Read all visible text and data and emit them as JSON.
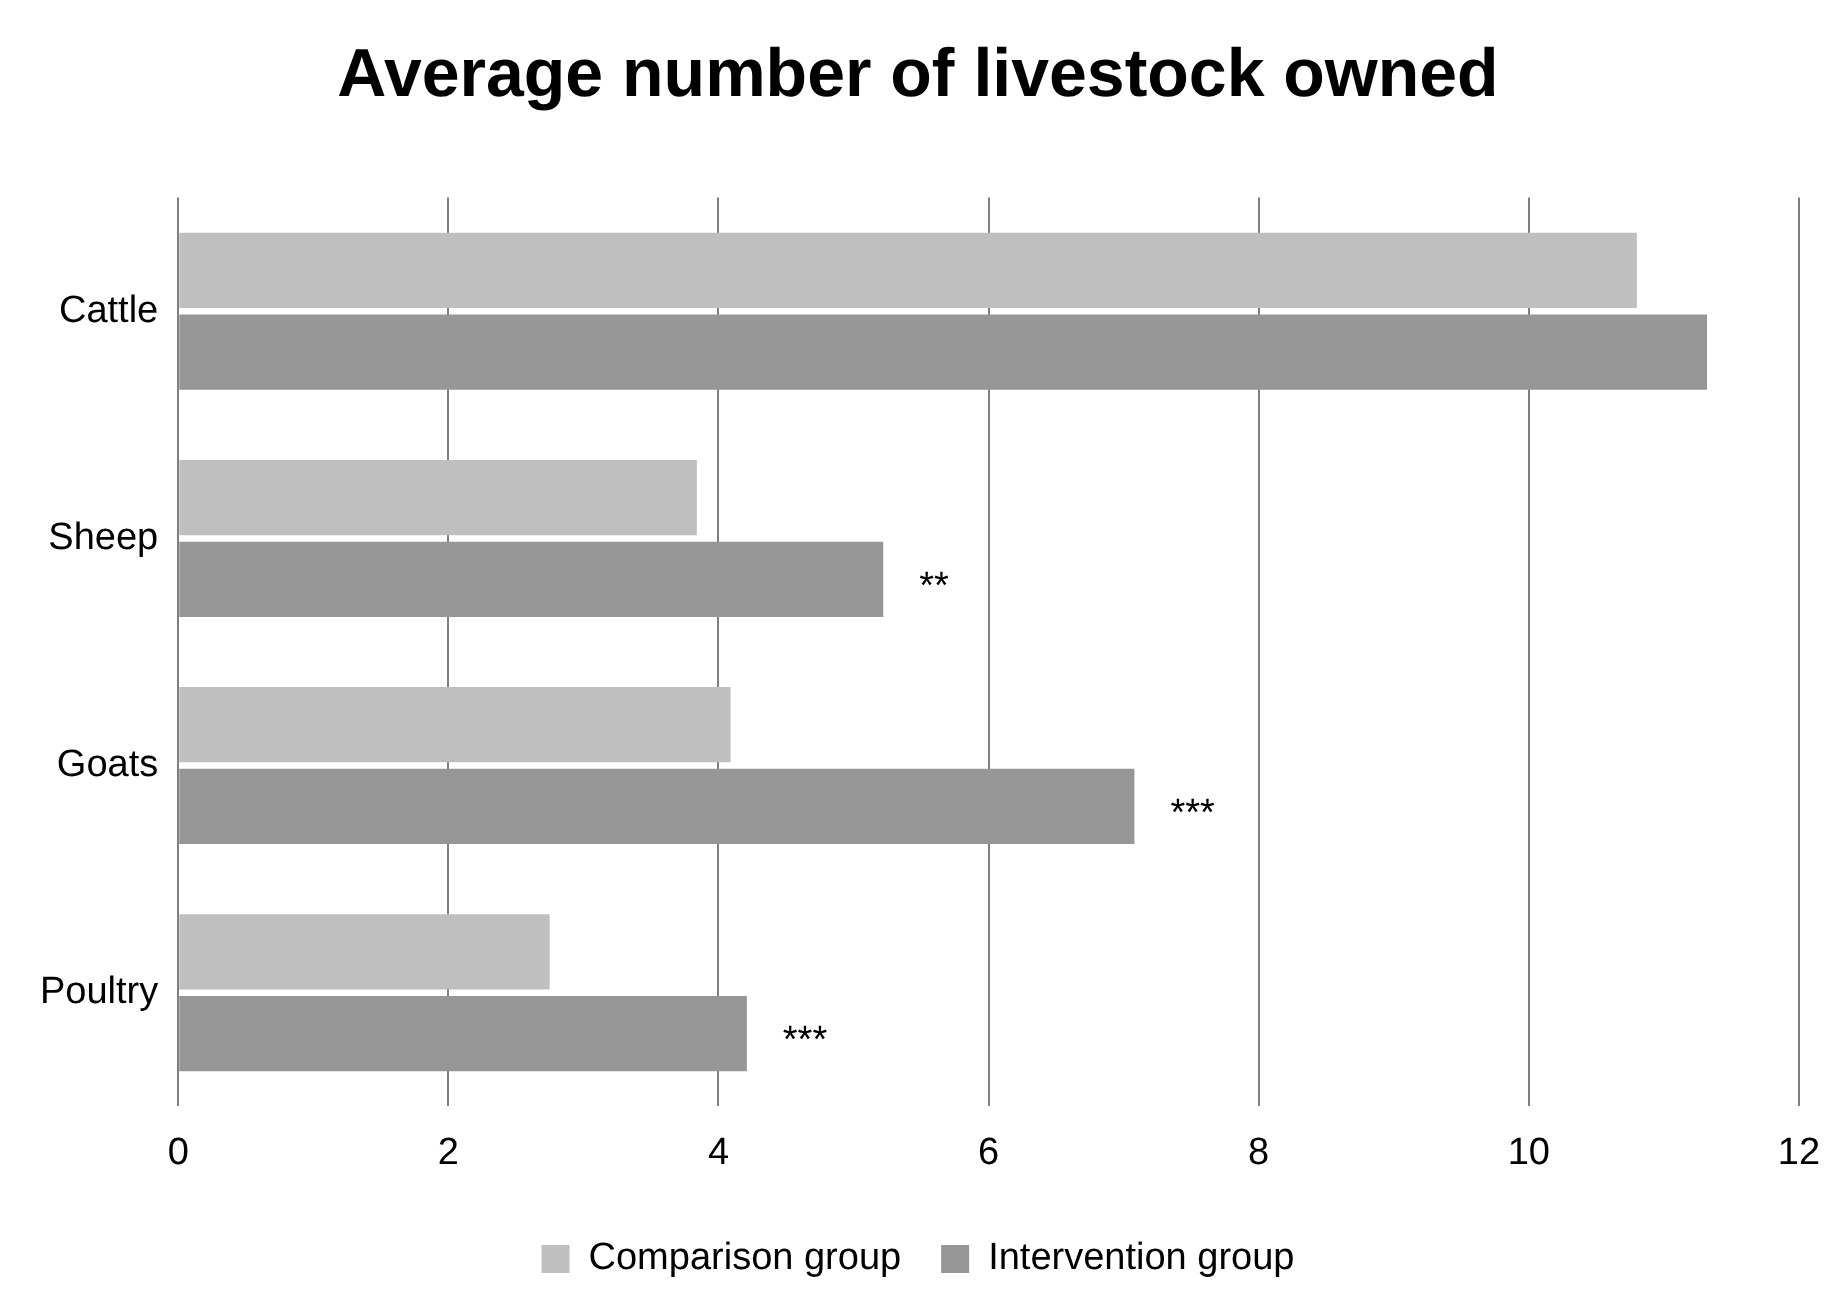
{
  "chart_data": {
    "type": "bar",
    "orientation": "horizontal",
    "title": "Average number of livestock owned",
    "categories": [
      "Cattle",
      "Sheep",
      "Goats",
      "Poultry"
    ],
    "series": [
      {
        "name": "Comparison group",
        "color": "#bfbfbf",
        "values": [
          10.8,
          3.84,
          4.09,
          2.75
        ]
      },
      {
        "name": "Intervention group",
        "color": "#969696",
        "values": [
          11.32,
          5.22,
          7.08,
          4.21
        ]
      }
    ],
    "xlim": [
      0,
      12
    ],
    "xticks": [
      0,
      2,
      4,
      6,
      8,
      10,
      12
    ],
    "grid": "x",
    "legend": "bottom",
    "annotations": [
      {
        "text": "**",
        "x": 5.22,
        "y": "Sheep"
      },
      {
        "text": "***",
        "x": 7.08,
        "y": "Goats"
      },
      {
        "text": "***",
        "x": 4.21,
        "y": "Poultry"
      }
    ]
  }
}
